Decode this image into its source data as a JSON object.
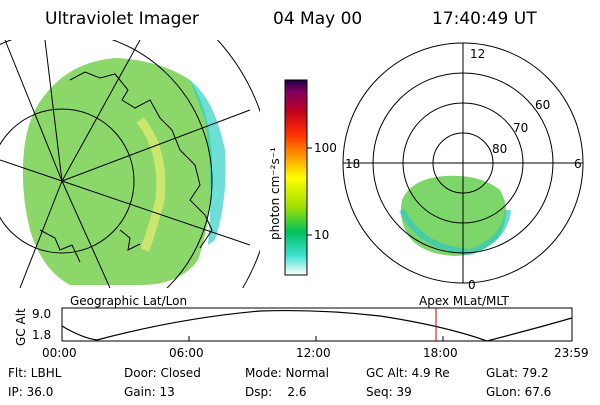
{
  "header": {
    "title": "Ultraviolet Imager",
    "date": "04 May 00",
    "time": "17:40:49 UT"
  },
  "colorbar": {
    "unit_label": "photon cm⁻²s⁻¹",
    "ticks": [
      "100",
      "10"
    ],
    "scale": "log",
    "colors": [
      "#ffffff",
      "#40e0d0",
      "#00c060",
      "#a0e000",
      "#ffff00",
      "#ffa000",
      "#ff3000",
      "#c00020",
      "#800060",
      "#200040"
    ]
  },
  "geo_panel": {
    "caption": "Geographic Lat/Lon",
    "aurora_color": "#7fd35a",
    "background_color": "#ffffff"
  },
  "polar_panel": {
    "caption": "Apex MLat/MLT",
    "mlt_labels": [
      "12",
      "18",
      "6",
      "0"
    ],
    "lat_labels": [
      "60",
      "70",
      "80"
    ]
  },
  "altitude_plot": {
    "ylabel": "GC Alt",
    "y_ticks": [
      "9.0",
      "1.8"
    ],
    "x_ticks": [
      "00:00",
      "06:00",
      "12:00",
      "18:00",
      "23:59"
    ],
    "marker_color": "#cc0000"
  },
  "status": {
    "row1": [
      "Flt: LBHL",
      "Door: Closed",
      "Mode: Normal",
      "GC Alt: 4.9 Re",
      "GLat: 79.2"
    ],
    "row2": [
      "IP: 36.0",
      "Gain: 13",
      "Dsp:    2.6",
      "Seq: 39",
      "GLon: 67.6"
    ]
  }
}
